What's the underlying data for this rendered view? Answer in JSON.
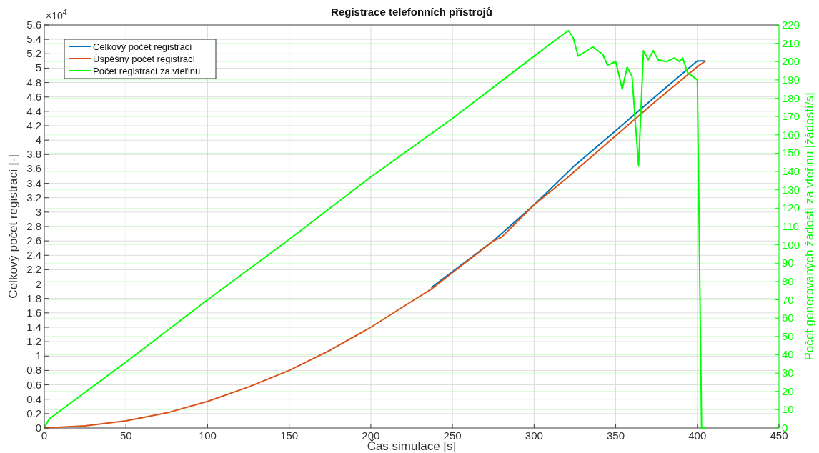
{
  "chart_data": {
    "type": "line",
    "title": "Registrace telefonních přístrojů",
    "xlabel": "Čas simulace [s]",
    "ylabel": "Celkový počet registrací [-]",
    "y2label": "Počet generovaných žádostí za vteřinu [žádostí/s]",
    "annotations": [
      "×10$^{4}$"
    ],
    "series": [
      {
        "name": "Celkový počet registrací",
        "color": "#0072bd",
        "x": [
          237,
          275,
          280,
          300,
          325,
          350,
          375,
          400,
          405
        ],
        "values": [
          1.95,
          2.6,
          2.7,
          3.1,
          3.65,
          4.13,
          4.62,
          5.1,
          5.1
        ]
      },
      {
        "name": "Úspěšný počet registrací",
        "color": "#d95319",
        "x": [
          0,
          25,
          50,
          75,
          100,
          125,
          150,
          175,
          200,
          225,
          237,
          250,
          275,
          280,
          300,
          320,
          325,
          350,
          375,
          400,
          405
        ],
        "values": [
          0,
          0.03,
          0.1,
          0.21,
          0.37,
          0.57,
          0.8,
          1.08,
          1.4,
          1.76,
          1.93,
          2.16,
          2.6,
          2.65,
          3.1,
          3.47,
          3.57,
          4.06,
          4.55,
          5.02,
          5.1
        ]
      },
      {
        "name": "Počet registrací za vteřinu",
        "color": "#00ff00",
        "axis": "y2",
        "x": [
          0,
          3,
          50,
          100,
          150,
          200,
          250,
          300,
          321,
          324,
          327,
          336,
          342,
          345,
          350,
          354,
          357,
          360,
          364,
          367,
          370,
          373,
          376,
          381,
          386,
          389,
          391,
          394,
          400,
          402.6,
          405
        ],
        "values": [
          0,
          5,
          36,
          70,
          103,
          137,
          169,
          203,
          217,
          213,
          203,
          208,
          204,
          198,
          200,
          185,
          197,
          192,
          143,
          206,
          201,
          206,
          201,
          200,
          202,
          200,
          202,
          194,
          190,
          0,
          0
        ]
      }
    ],
    "xlim": [
      0,
      450
    ],
    "xticks": [
      0,
      50,
      100,
      150,
      200,
      250,
      300,
      350,
      400,
      450
    ],
    "ylim": [
      0,
      5.6
    ],
    "yticks": [
      0,
      0.2,
      0.4,
      0.6,
      0.8,
      1,
      1.2,
      1.4,
      1.6,
      1.8,
      2,
      2.2,
      2.4,
      2.6,
      2.8,
      3,
      3.2,
      3.4,
      3.6,
      3.8,
      4,
      4.2,
      4.4,
      4.6,
      4.8,
      5,
      5.2,
      5.4,
      5.6
    ],
    "y2lim": [
      0,
      220
    ],
    "y2ticks": [
      0,
      10,
      20,
      30,
      40,
      50,
      60,
      70,
      80,
      90,
      100,
      110,
      120,
      130,
      140,
      150,
      160,
      170,
      180,
      190,
      200,
      210,
      220
    ],
    "grid": true,
    "legend": "top left",
    "marker": "none",
    "line_style": "solid"
  }
}
